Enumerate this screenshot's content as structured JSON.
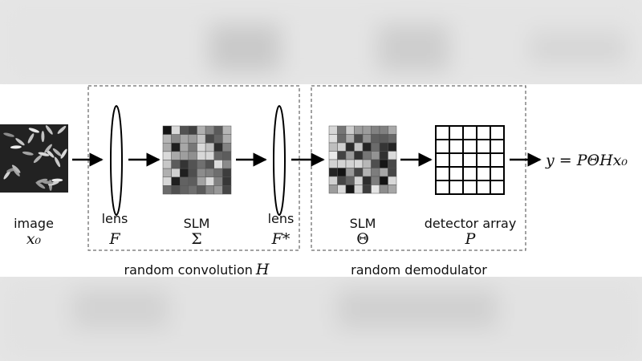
{
  "image": {
    "label": "image",
    "symbol": "x₀"
  },
  "stages": [
    {
      "label": "lens",
      "symbol": "F"
    },
    {
      "label": "SLM",
      "symbol": "Σ"
    },
    {
      "label": "lens",
      "symbol": "F*"
    },
    {
      "label": "SLM",
      "symbol": "Θ"
    },
    {
      "label": "detector array",
      "symbol": "P"
    }
  ],
  "output": "y = PΘHx₀",
  "groups": [
    {
      "label": "random convolution",
      "symbol": "H"
    },
    {
      "label": "random demodulator"
    }
  ]
}
